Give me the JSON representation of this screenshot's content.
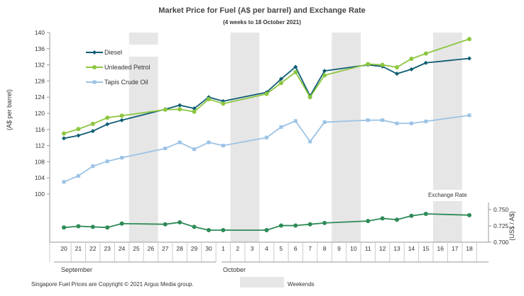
{
  "chart_data": {
    "type": "line",
    "title": "Market Price for Fuel (A$ per barrel) and Exchange  Rate",
    "subtitle": "(4 weeks to 18 October 2021)",
    "ylabel_left": "(A$ per barrel)",
    "ylabel_right": "(US$ / A$)",
    "fx_label": "Exchange  Rate",
    "months": [
      "September",
      "October"
    ],
    "categories": [
      "20",
      "21",
      "22",
      "23",
      "24",
      "25",
      "26",
      "27",
      "28",
      "29",
      "30",
      "1",
      "2",
      "3",
      "4",
      "5",
      "6",
      "7",
      "8",
      "9",
      "10",
      "11",
      "12",
      "13",
      "14",
      "15",
      "16",
      "17",
      "18"
    ],
    "weekend_bands": [
      [
        "25",
        "26"
      ],
      [
        "2",
        "3"
      ],
      [
        "9",
        "10"
      ],
      [
        "16",
        "17"
      ]
    ],
    "ylim": [
      100,
      140
    ],
    "yticks": [
      "100",
      "104",
      "108",
      "112",
      "116",
      "120",
      "124",
      "128",
      "132",
      "136",
      "140"
    ],
    "fx_ylim": [
      0.7,
      0.75
    ],
    "fx_yticks": [
      "0.700",
      "0.725",
      "0.750"
    ],
    "legend_position": "top-left",
    "series": [
      {
        "name": "Diesel",
        "color": "#0d5c73",
        "marker": "diamond",
        "axis": "left",
        "values": [
          113.8,
          114.5,
          115.6,
          117.3,
          118.3,
          null,
          null,
          121.0,
          122.0,
          121.2,
          124.0,
          123.0,
          null,
          null,
          125.2,
          128.5,
          131.5,
          124.3,
          130.5,
          null,
          null,
          132.0,
          131.6,
          129.8,
          130.9,
          132.5,
          null,
          null,
          133.6
        ]
      },
      {
        "name": "Unleaded Petrol",
        "color": "#8cc63f",
        "marker": "circle",
        "axis": "left",
        "values": [
          115.0,
          116.1,
          117.4,
          118.9,
          119.4,
          null,
          null,
          120.9,
          121.0,
          120.4,
          123.5,
          122.4,
          null,
          null,
          124.8,
          127.5,
          130.2,
          124.0,
          129.4,
          null,
          null,
          132.2,
          132.0,
          131.4,
          133.5,
          134.8,
          null,
          null,
          138.4
        ]
      },
      {
        "name": "Tapis Crude Oil",
        "color": "#9cc3e5",
        "marker": "square",
        "axis": "left",
        "values": [
          103.0,
          104.5,
          106.9,
          108.1,
          109.0,
          null,
          null,
          111.3,
          112.8,
          111.1,
          112.8,
          112.0,
          null,
          null,
          114.0,
          116.6,
          118.1,
          113.0,
          117.8,
          null,
          null,
          118.3,
          118.3,
          117.5,
          117.5,
          118.0,
          null,
          null,
          119.5
        ]
      },
      {
        "name": "Exchange Rate",
        "color": "#2e8b57",
        "marker": "circle",
        "axis": "right",
        "values": [
          0.7225,
          0.7245,
          0.7235,
          0.7225,
          0.7285,
          null,
          null,
          0.7275,
          0.7305,
          0.7235,
          0.7185,
          0.7185,
          null,
          null,
          0.7185,
          0.7255,
          0.7255,
          0.7275,
          0.7295,
          null,
          null,
          0.7325,
          0.7365,
          0.7345,
          0.7405,
          0.7435,
          null,
          null,
          0.7415
        ]
      }
    ]
  },
  "footer": {
    "copyright": "Singapore  Fuel Prices are Copyright © 2021 Argus Media group.",
    "weekends_label": "Weekends"
  }
}
